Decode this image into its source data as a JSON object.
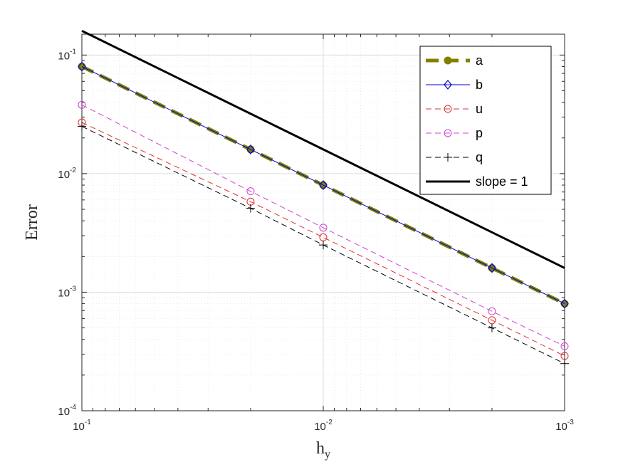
{
  "chart_data": {
    "type": "line",
    "title": "",
    "xlabel": "h",
    "xlabel_subscript": "y",
    "ylabel": "Error",
    "x_scale": "log",
    "y_scale": "log",
    "x_reversed": true,
    "xlim": [
      0.1,
      0.001
    ],
    "ylim": [
      0.0001,
      0.15
    ],
    "x_ticks": [
      {
        "value": 0.1,
        "base": "10",
        "exp": "-1"
      },
      {
        "value": 0.01,
        "base": "10",
        "exp": "-2"
      },
      {
        "value": 0.001,
        "base": "10",
        "exp": "-3"
      }
    ],
    "y_ticks": [
      {
        "value": 0.1,
        "base": "10",
        "exp": "-1"
      },
      {
        "value": 0.01,
        "base": "10",
        "exp": "-2"
      },
      {
        "value": 0.001,
        "base": "10",
        "exp": "-3"
      },
      {
        "value": 0.0001,
        "base": "10",
        "exp": "-4"
      }
    ],
    "grid": true,
    "legend_position": "top-right",
    "x": [
      0.1,
      0.02,
      0.01,
      0.002,
      0.001
    ],
    "series": [
      {
        "name": "a",
        "values": [
          0.08,
          0.016,
          0.008,
          0.0016,
          0.0008
        ],
        "color": "#808000",
        "style": "dashed-thick",
        "marker": "dot"
      },
      {
        "name": "b",
        "values": [
          0.08,
          0.016,
          0.008,
          0.0016,
          0.0008
        ],
        "color": "#0000cc",
        "style": "solid",
        "marker": "diamond"
      },
      {
        "name": "u",
        "values": [
          0.027,
          0.0058,
          0.0029,
          0.00058,
          0.00029
        ],
        "color": "#e03030",
        "style": "dashed",
        "marker": "circle"
      },
      {
        "name": "p",
        "values": [
          0.038,
          0.0071,
          0.0035,
          0.00069,
          0.00035
        ],
        "color": "#d040d0",
        "style": "dashed",
        "marker": "circle"
      },
      {
        "name": "q",
        "values": [
          0.025,
          0.0051,
          0.0025,
          0.0005,
          0.00025
        ],
        "color": "#000000",
        "style": "dashed",
        "marker": "plus"
      },
      {
        "name": "slope = 1",
        "values": [
          0.16,
          0.032,
          0.016,
          0.0032,
          0.0016
        ],
        "color": "#000000",
        "style": "solid-thick",
        "marker": "none"
      }
    ]
  }
}
